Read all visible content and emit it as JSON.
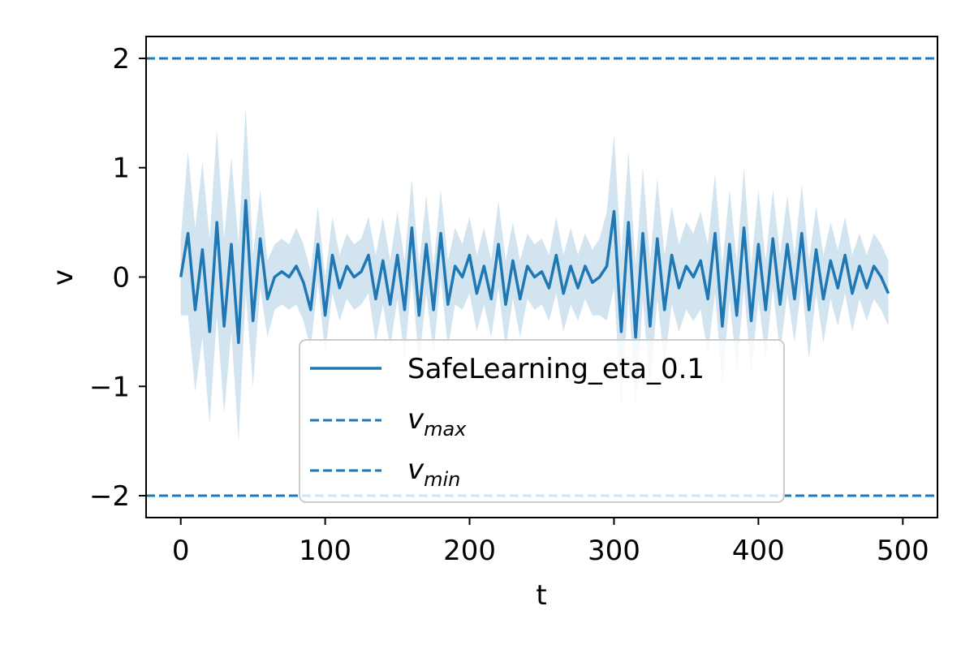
{
  "chart_data": {
    "type": "line",
    "title": "",
    "xlabel": "t",
    "ylabel": "v",
    "xlim": [
      -24,
      524
    ],
    "ylim": [
      -2.2,
      2.2
    ],
    "xticks": [
      0,
      100,
      200,
      300,
      400,
      500
    ],
    "xtick_labels": [
      "0",
      "100",
      "200",
      "300",
      "400",
      "500"
    ],
    "yticks": [
      -2,
      -1,
      0,
      1,
      2
    ],
    "ytick_labels": [
      "−2",
      "−1",
      "0",
      "1",
      "2"
    ],
    "grid": false,
    "legend_placement": "lower center",
    "series": [
      {
        "name": "SafeLearning_eta_0.1",
        "color": "#1f77b4",
        "style": "solid",
        "t_start": 0,
        "t_step": 5,
        "values": [
          0.0,
          0.4,
          -0.3,
          0.25,
          -0.5,
          0.5,
          -0.45,
          0.3,
          -0.6,
          0.7,
          -0.4,
          0.35,
          -0.2,
          0.0,
          0.05,
          0.0,
          0.1,
          -0.05,
          -0.3,
          0.3,
          -0.35,
          0.2,
          -0.1,
          0.1,
          0.0,
          0.05,
          0.2,
          -0.2,
          0.15,
          -0.25,
          0.2,
          -0.3,
          0.45,
          -0.35,
          0.3,
          -0.3,
          0.4,
          -0.25,
          0.1,
          0.0,
          0.2,
          -0.15,
          0.1,
          -0.2,
          0.3,
          -0.25,
          0.15,
          -0.2,
          0.1,
          0.0,
          0.05,
          -0.1,
          0.2,
          -0.15,
          0.1,
          -0.1,
          0.1,
          -0.05,
          0.0,
          0.1,
          0.6,
          -0.5,
          0.5,
          -0.55,
          0.4,
          -0.45,
          0.35,
          -0.3,
          0.2,
          -0.1,
          0.1,
          0.0,
          0.15,
          -0.2,
          0.4,
          -0.45,
          0.3,
          -0.35,
          0.45,
          -0.4,
          0.3,
          -0.3,
          0.35,
          -0.25,
          0.3,
          -0.2,
          0.4,
          -0.3,
          0.25,
          -0.2,
          0.15,
          -0.1,
          0.2,
          -0.15,
          0.1,
          -0.1,
          0.1,
          0.0,
          -0.15
        ],
        "band_width": [
          0.35,
          0.75,
          0.75,
          0.8,
          0.85,
          0.85,
          0.8,
          0.8,
          0.9,
          0.85,
          0.6,
          0.45,
          0.35,
          0.3,
          0.3,
          0.3,
          0.35,
          0.35,
          0.35,
          0.35,
          0.35,
          0.35,
          0.3,
          0.3,
          0.3,
          0.3,
          0.35,
          0.4,
          0.4,
          0.4,
          0.4,
          0.45,
          0.45,
          0.45,
          0.45,
          0.4,
          0.4,
          0.4,
          0.35,
          0.3,
          0.35,
          0.35,
          0.35,
          0.35,
          0.4,
          0.4,
          0.35,
          0.35,
          0.3,
          0.3,
          0.3,
          0.3,
          0.35,
          0.35,
          0.35,
          0.3,
          0.3,
          0.3,
          0.35,
          0.5,
          0.7,
          0.7,
          0.65,
          0.65,
          0.6,
          0.6,
          0.55,
          0.5,
          0.45,
          0.4,
          0.4,
          0.4,
          0.45,
          0.5,
          0.55,
          0.55,
          0.5,
          0.5,
          0.55,
          0.5,
          0.5,
          0.45,
          0.45,
          0.45,
          0.45,
          0.4,
          0.45,
          0.45,
          0.4,
          0.4,
          0.35,
          0.35,
          0.35,
          0.35,
          0.3,
          0.3,
          0.3,
          0.3,
          0.3
        ]
      },
      {
        "name": "v_max",
        "label_main": "v",
        "label_sub": "max",
        "color": "#1f77b4",
        "style": "dashed",
        "y": 2
      },
      {
        "name": "v_min",
        "label_main": "v",
        "label_sub": "min",
        "color": "#1f77b4",
        "style": "dashed",
        "y": -2
      }
    ]
  }
}
